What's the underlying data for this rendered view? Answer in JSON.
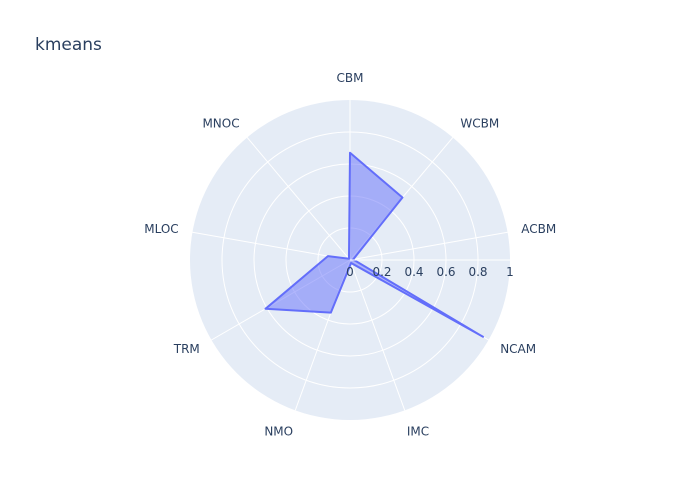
{
  "chart_data": {
    "type": "radar",
    "title": "kmeans",
    "categories": [
      "CBM",
      "WCBM",
      "ACBM",
      "NCAM",
      "IMC",
      "NMO",
      "TRM",
      "MLOC",
      "MNOC"
    ],
    "series": [
      {
        "values": [
          0.67,
          0.51,
          0.02,
          0.96,
          0.02,
          0.35,
          0.61,
          0.14,
          0.01
        ],
        "line_color": "#636efa",
        "fill_color": "rgba(99,110,250,0.5)"
      }
    ],
    "radial_range": [
      0,
      1
    ],
    "radial_ticks": [
      0,
      0.2,
      0.4,
      0.6,
      0.8,
      1
    ],
    "radial_tick_labels": [
      "0",
      "0.2",
      "0.4",
      "0.6",
      "0.8",
      "1"
    ],
    "background_color": "#e5ecf6",
    "grid_color": "#ffffff"
  }
}
